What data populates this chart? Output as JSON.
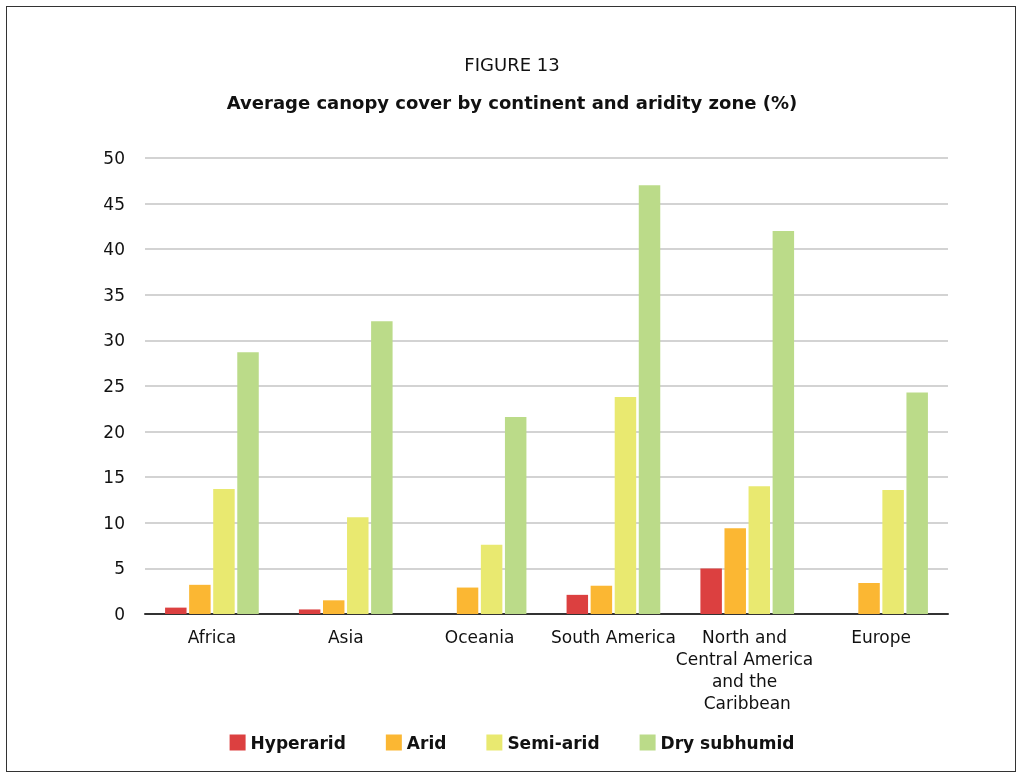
{
  "chart_data": {
    "type": "bar",
    "title": "FIGURE 13",
    "subtitle": "Average canopy cover by continent and aridity zone (%)",
    "categories": [
      "Africa",
      "Asia",
      "Oceania",
      "South America",
      "North and Central America and the Caribbean",
      "Europe"
    ],
    "series": [
      {
        "name": "Hyperarid",
        "color": "#dc4040",
        "values": [
          0.7,
          0.5,
          null,
          2.1,
          5.0,
          null
        ]
      },
      {
        "name": "Arid",
        "color": "#fbb733",
        "values": [
          3.2,
          1.5,
          2.9,
          3.1,
          9.4,
          3.4
        ]
      },
      {
        "name": "Semi-arid",
        "color": "#e9e970",
        "values": [
          13.7,
          10.6,
          7.6,
          23.8,
          14.0,
          13.6
        ]
      },
      {
        "name": "Dry subhumid",
        "color": "#bbdb89",
        "values": [
          28.7,
          32.1,
          21.6,
          47.0,
          42.0,
          24.3
        ]
      }
    ],
    "ylim": [
      0,
      50
    ],
    "yticks": [
      0,
      5,
      10,
      15,
      20,
      25,
      30,
      35,
      40,
      45,
      50
    ],
    "grid": "y",
    "legend": "bottom"
  }
}
